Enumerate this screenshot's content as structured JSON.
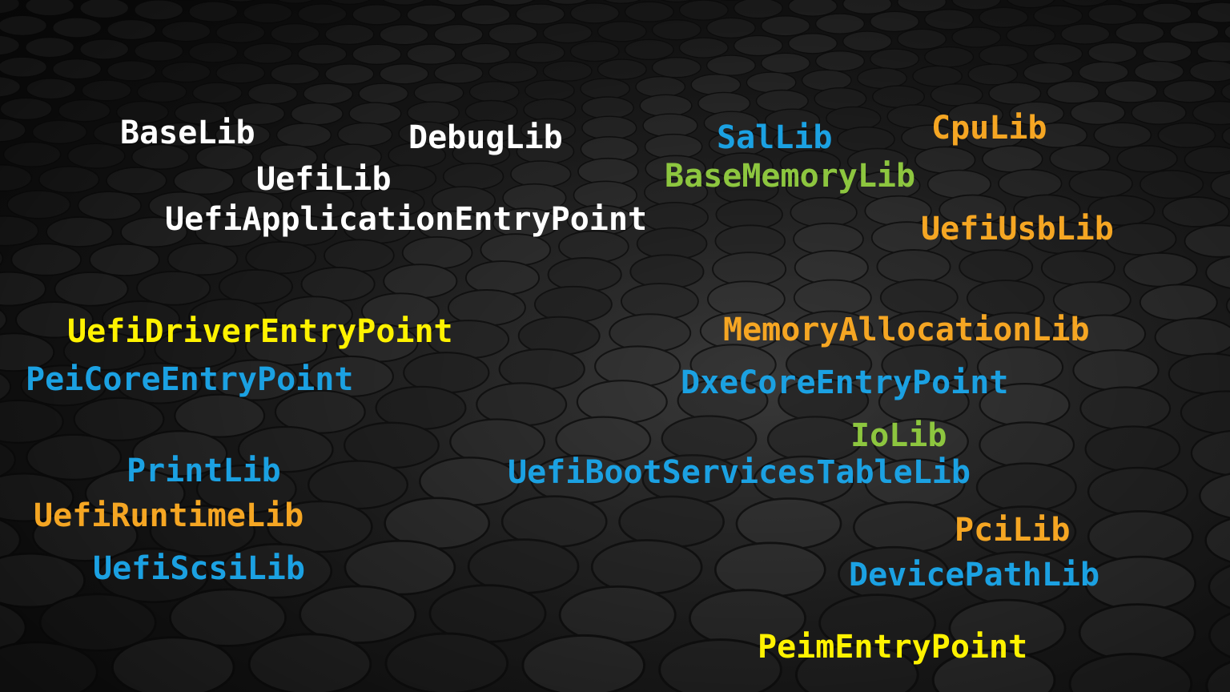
{
  "colors": {
    "white": "#FFFFFF",
    "blue": "#1BA1E2",
    "green": "#8DC63F",
    "orange": "#F5A623",
    "yellow": "#FFF200"
  },
  "libraries": [
    {
      "label": "BaseLib",
      "color": "white"
    },
    {
      "label": "DebugLib",
      "color": "white"
    },
    {
      "label": "SalLib",
      "color": "blue"
    },
    {
      "label": "CpuLib",
      "color": "orange"
    },
    {
      "label": "UefiLib",
      "color": "white"
    },
    {
      "label": "BaseMemoryLib",
      "color": "green"
    },
    {
      "label": "UefiApplicationEntryPoint",
      "color": "white"
    },
    {
      "label": "UefiUsbLib",
      "color": "orange"
    },
    {
      "label": "UefiDriverEntryPoint",
      "color": "yellow"
    },
    {
      "label": "MemoryAllocationLib",
      "color": "orange"
    },
    {
      "label": "PeiCoreEntryPoint",
      "color": "blue"
    },
    {
      "label": "DxeCoreEntryPoint",
      "color": "blue"
    },
    {
      "label": "IoLib",
      "color": "green"
    },
    {
      "label": "PrintLib",
      "color": "blue"
    },
    {
      "label": "UefiBootServicesTableLib",
      "color": "blue"
    },
    {
      "label": "UefiRuntimeLib",
      "color": "orange"
    },
    {
      "label": "PciLib",
      "color": "orange"
    },
    {
      "label": "UefiScsiLib",
      "color": "blue"
    },
    {
      "label": "DevicePathLib",
      "color": "blue"
    },
    {
      "label": "PeimEntryPoint",
      "color": "yellow"
    }
  ]
}
